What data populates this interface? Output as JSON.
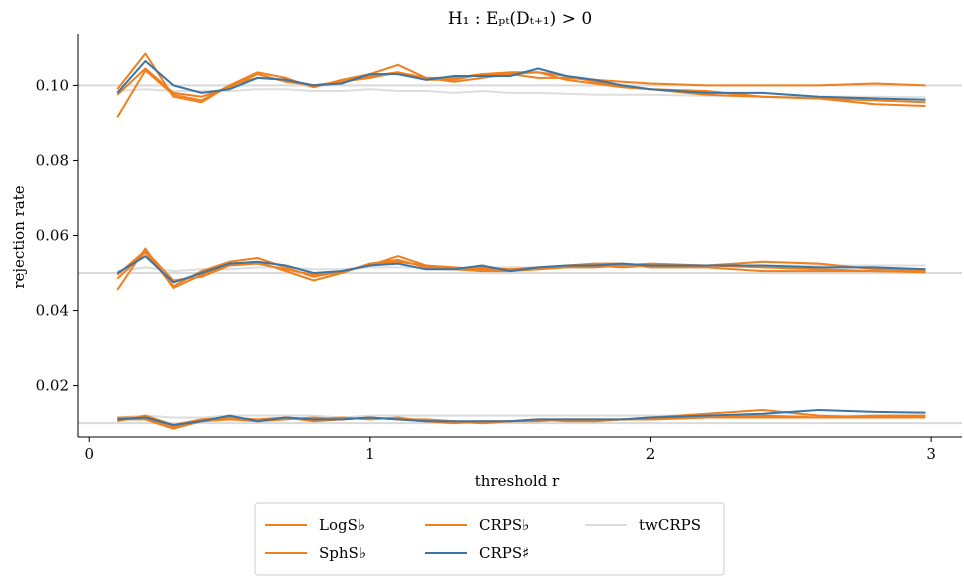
{
  "chart_data": {
    "type": "line",
    "title": "H₁ : Eₚₜ(Dₜ₊₁) > 0",
    "xlabel": "threshold r",
    "ylabel": "rejection rate",
    "xlim": [
      -0.04,
      3.11
    ],
    "ylim": [
      0.0063,
      0.1137
    ],
    "xticks": [
      0,
      1,
      2,
      3
    ],
    "xtick_labels": [
      "0",
      "1",
      "2",
      "3"
    ],
    "yticks": [
      0.02,
      0.04,
      0.06,
      0.08,
      0.1
    ],
    "ytick_labels": [
      "0.02",
      "0.04",
      "0.06",
      "0.08",
      "0.10"
    ],
    "reference_lines": [
      0.01,
      0.05,
      0.1
    ],
    "grid": false,
    "legend_placement": "below-center",
    "legend_columns": 3,
    "colors": {
      "orange": "#f07f1e",
      "blue": "#3a75a5",
      "gray": "#dddddd",
      "reference": "#d9d9d9"
    },
    "levels": [
      {
        "nominal": 0.1,
        "x": [
          0.1,
          0.2,
          0.3,
          0.4,
          0.5,
          0.6,
          0.7,
          0.8,
          0.9,
          1.0,
          1.1,
          1.2,
          1.3,
          1.4,
          1.5,
          1.6,
          1.7,
          1.8,
          1.9,
          2.0,
          2.2,
          2.4,
          2.6,
          2.8,
          2.98
        ],
        "series": [
          {
            "name": "LogS♭",
            "color": "#f07f1e",
            "values": [
              0.0915,
              0.104,
              0.0975,
              0.096,
              0.1,
              0.102,
              0.1015,
              0.1,
              0.101,
              0.102,
              0.1035,
              0.102,
              0.101,
              0.102,
              0.103,
              0.102,
              0.102,
              0.1015,
              0.101,
              0.1005,
              0.1,
              0.1,
              0.1,
              0.1005,
              0.1
            ]
          },
          {
            "name": "SphS♭",
            "color": "#f07f1e",
            "values": [
              0.099,
              0.1085,
              0.097,
              0.0955,
              0.1,
              0.1035,
              0.102,
              0.0995,
              0.1015,
              0.103,
              0.1055,
              0.102,
              0.102,
              0.103,
              0.1035,
              0.1035,
              0.1025,
              0.101,
              0.1,
              0.099,
              0.0985,
              0.097,
              0.0965,
              0.095,
              0.0945
            ]
          },
          {
            "name": "CRPS♭",
            "color": "#f07f1e",
            "values": [
              0.0975,
              0.1045,
              0.098,
              0.097,
              0.0995,
              0.103,
              0.101,
              0.1,
              0.101,
              0.1025,
              0.1035,
              0.1015,
              0.1015,
              0.103,
              0.103,
              0.1035,
              0.1015,
              0.1005,
              0.0995,
              0.099,
              0.0975,
              0.097,
              0.0965,
              0.096,
              0.0955
            ]
          },
          {
            "name": "CRPS♯",
            "color": "#3a75a5",
            "values": [
              0.098,
              0.1065,
              0.1,
              0.098,
              0.099,
              0.102,
              0.1015,
              0.1,
              0.1005,
              0.103,
              0.103,
              0.1015,
              0.1025,
              0.1025,
              0.1025,
              0.1045,
              0.1025,
              0.1015,
              0.1,
              0.099,
              0.098,
              0.098,
              0.097,
              0.0965,
              0.0962
            ]
          },
          {
            "name": "twCRPS",
            "color": "#dddddd",
            "values": [
              0.0985,
              0.099,
              0.0985,
              0.0985,
              0.0985,
              0.099,
              0.099,
              0.0985,
              0.0985,
              0.099,
              0.0985,
              0.0985,
              0.098,
              0.0985,
              0.098,
              0.098,
              0.0978,
              0.0975,
              0.0975,
              0.0975,
              0.0972,
              0.097,
              0.097,
              0.097,
              0.0968
            ]
          }
        ]
      },
      {
        "nominal": 0.05,
        "x": [
          0.1,
          0.2,
          0.3,
          0.4,
          0.5,
          0.6,
          0.7,
          0.8,
          0.9,
          1.0,
          1.1,
          1.2,
          1.3,
          1.4,
          1.5,
          1.6,
          1.7,
          1.8,
          1.9,
          2.0,
          2.2,
          2.4,
          2.6,
          2.8,
          2.98
        ],
        "series": [
          {
            "name": "LogS♭",
            "color": "#f07f1e",
            "values": [
              0.0455,
              0.0565,
              0.046,
              0.0495,
              0.0525,
              0.053,
              0.0505,
              0.048,
              0.05,
              0.0525,
              0.0535,
              0.0515,
              0.051,
              0.0505,
              0.0505,
              0.051,
              0.0515,
              0.052,
              0.0515,
              0.052,
              0.052,
              0.053,
              0.0525,
              0.051,
              0.051
            ]
          },
          {
            "name": "SphS♭",
            "color": "#f07f1e",
            "values": [
              0.0485,
              0.0555,
              0.0465,
              0.0505,
              0.053,
              0.054,
              0.0515,
              0.049,
              0.0505,
              0.052,
              0.0545,
              0.052,
              0.051,
              0.0515,
              0.051,
              0.051,
              0.052,
              0.0525,
              0.0525,
              0.0515,
              0.0515,
              0.0505,
              0.0505,
              0.0505,
              0.0502
            ]
          },
          {
            "name": "CRPS♭",
            "color": "#f07f1e",
            "values": [
              0.0495,
              0.056,
              0.048,
              0.049,
              0.052,
              0.0525,
              0.051,
              0.0495,
              0.05,
              0.0525,
              0.053,
              0.052,
              0.0515,
              0.051,
              0.051,
              0.0515,
              0.0515,
              0.0515,
              0.052,
              0.0525,
              0.052,
              0.0515,
              0.051,
              0.0505,
              0.0505
            ]
          },
          {
            "name": "CRPS♯",
            "color": "#3a75a5",
            "values": [
              0.05,
              0.0545,
              0.0475,
              0.05,
              0.0525,
              0.053,
              0.052,
              0.05,
              0.0505,
              0.052,
              0.0525,
              0.051,
              0.051,
              0.052,
              0.0505,
              0.0515,
              0.052,
              0.052,
              0.0525,
              0.052,
              0.052,
              0.052,
              0.0515,
              0.0515,
              0.051
            ]
          },
          {
            "name": "twCRPS",
            "color": "#dddddd",
            "values": [
              0.0505,
              0.0515,
              0.0505,
              0.051,
              0.051,
              0.0515,
              0.0515,
              0.051,
              0.051,
              0.0515,
              0.0515,
              0.0515,
              0.051,
              0.0515,
              0.0515,
              0.0515,
              0.052,
              0.052,
              0.052,
              0.052,
              0.052,
              0.052,
              0.052,
              0.052,
              0.052
            ]
          }
        ]
      },
      {
        "nominal": 0.01,
        "x": [
          0.1,
          0.2,
          0.3,
          0.4,
          0.5,
          0.6,
          0.7,
          0.8,
          0.9,
          1.0,
          1.1,
          1.2,
          1.3,
          1.4,
          1.5,
          1.6,
          1.7,
          1.8,
          1.9,
          2.0,
          2.2,
          2.4,
          2.6,
          2.8,
          2.98
        ],
        "series": [
          {
            "name": "LogS♭",
            "color": "#f07f1e",
            "values": [
              0.011,
              0.011,
              0.0085,
              0.0105,
              0.0115,
              0.0105,
              0.011,
              0.0115,
              0.011,
              0.0115,
              0.011,
              0.011,
              0.0105,
              0.01,
              0.0105,
              0.0105,
              0.011,
              0.011,
              0.011,
              0.0115,
              0.0125,
              0.0135,
              0.012,
              0.0115,
              0.0115
            ]
          },
          {
            "name": "SphS♭",
            "color": "#f07f1e",
            "values": [
              0.0105,
              0.012,
              0.0095,
              0.011,
              0.0115,
              0.011,
              0.0115,
              0.011,
              0.0115,
              0.011,
              0.0115,
              0.0105,
              0.01,
              0.0105,
              0.0105,
              0.011,
              0.011,
              0.0105,
              0.011,
              0.011,
              0.0115,
              0.0115,
              0.0115,
              0.012,
              0.012
            ]
          },
          {
            "name": "CRPS♭",
            "color": "#f07f1e",
            "values": [
              0.0115,
              0.0115,
              0.009,
              0.0105,
              0.011,
              0.0105,
              0.0115,
              0.0105,
              0.011,
              0.0115,
              0.011,
              0.0105,
              0.0105,
              0.01,
              0.0105,
              0.011,
              0.0105,
              0.0105,
              0.011,
              0.011,
              0.0115,
              0.012,
              0.0115,
              0.0115,
              0.012
            ]
          },
          {
            "name": "CRPS♯",
            "color": "#3a75a5",
            "values": [
              0.011,
              0.0115,
              0.0095,
              0.0105,
              0.012,
              0.0105,
              0.0115,
              0.011,
              0.011,
              0.0115,
              0.011,
              0.0105,
              0.0105,
              0.0105,
              0.0105,
              0.011,
              0.011,
              0.011,
              0.011,
              0.0115,
              0.012,
              0.0125,
              0.0135,
              0.013,
              0.0128
            ]
          },
          {
            "name": "twCRPS",
            "color": "#dddddd",
            "values": [
              0.0115,
              0.012,
              0.0115,
              0.0115,
              0.012,
              0.012,
              0.012,
              0.012,
              0.0115,
              0.012,
              0.012,
              0.012,
              0.012,
              0.012,
              0.012,
              0.012,
              0.012,
              0.012,
              0.012,
              0.012,
              0.012,
              0.012,
              0.012,
              0.012,
              0.012
            ]
          }
        ]
      }
    ],
    "legend": [
      {
        "name": "LogS♭",
        "color": "#f07f1e"
      },
      {
        "name": "SphS♭",
        "color": "#f07f1e"
      },
      {
        "name": "CRPS♭",
        "color": "#f07f1e"
      },
      {
        "name": "CRPS♯",
        "color": "#3a75a5"
      },
      {
        "name": "twCRPS",
        "color": "#dddddd"
      }
    ]
  }
}
